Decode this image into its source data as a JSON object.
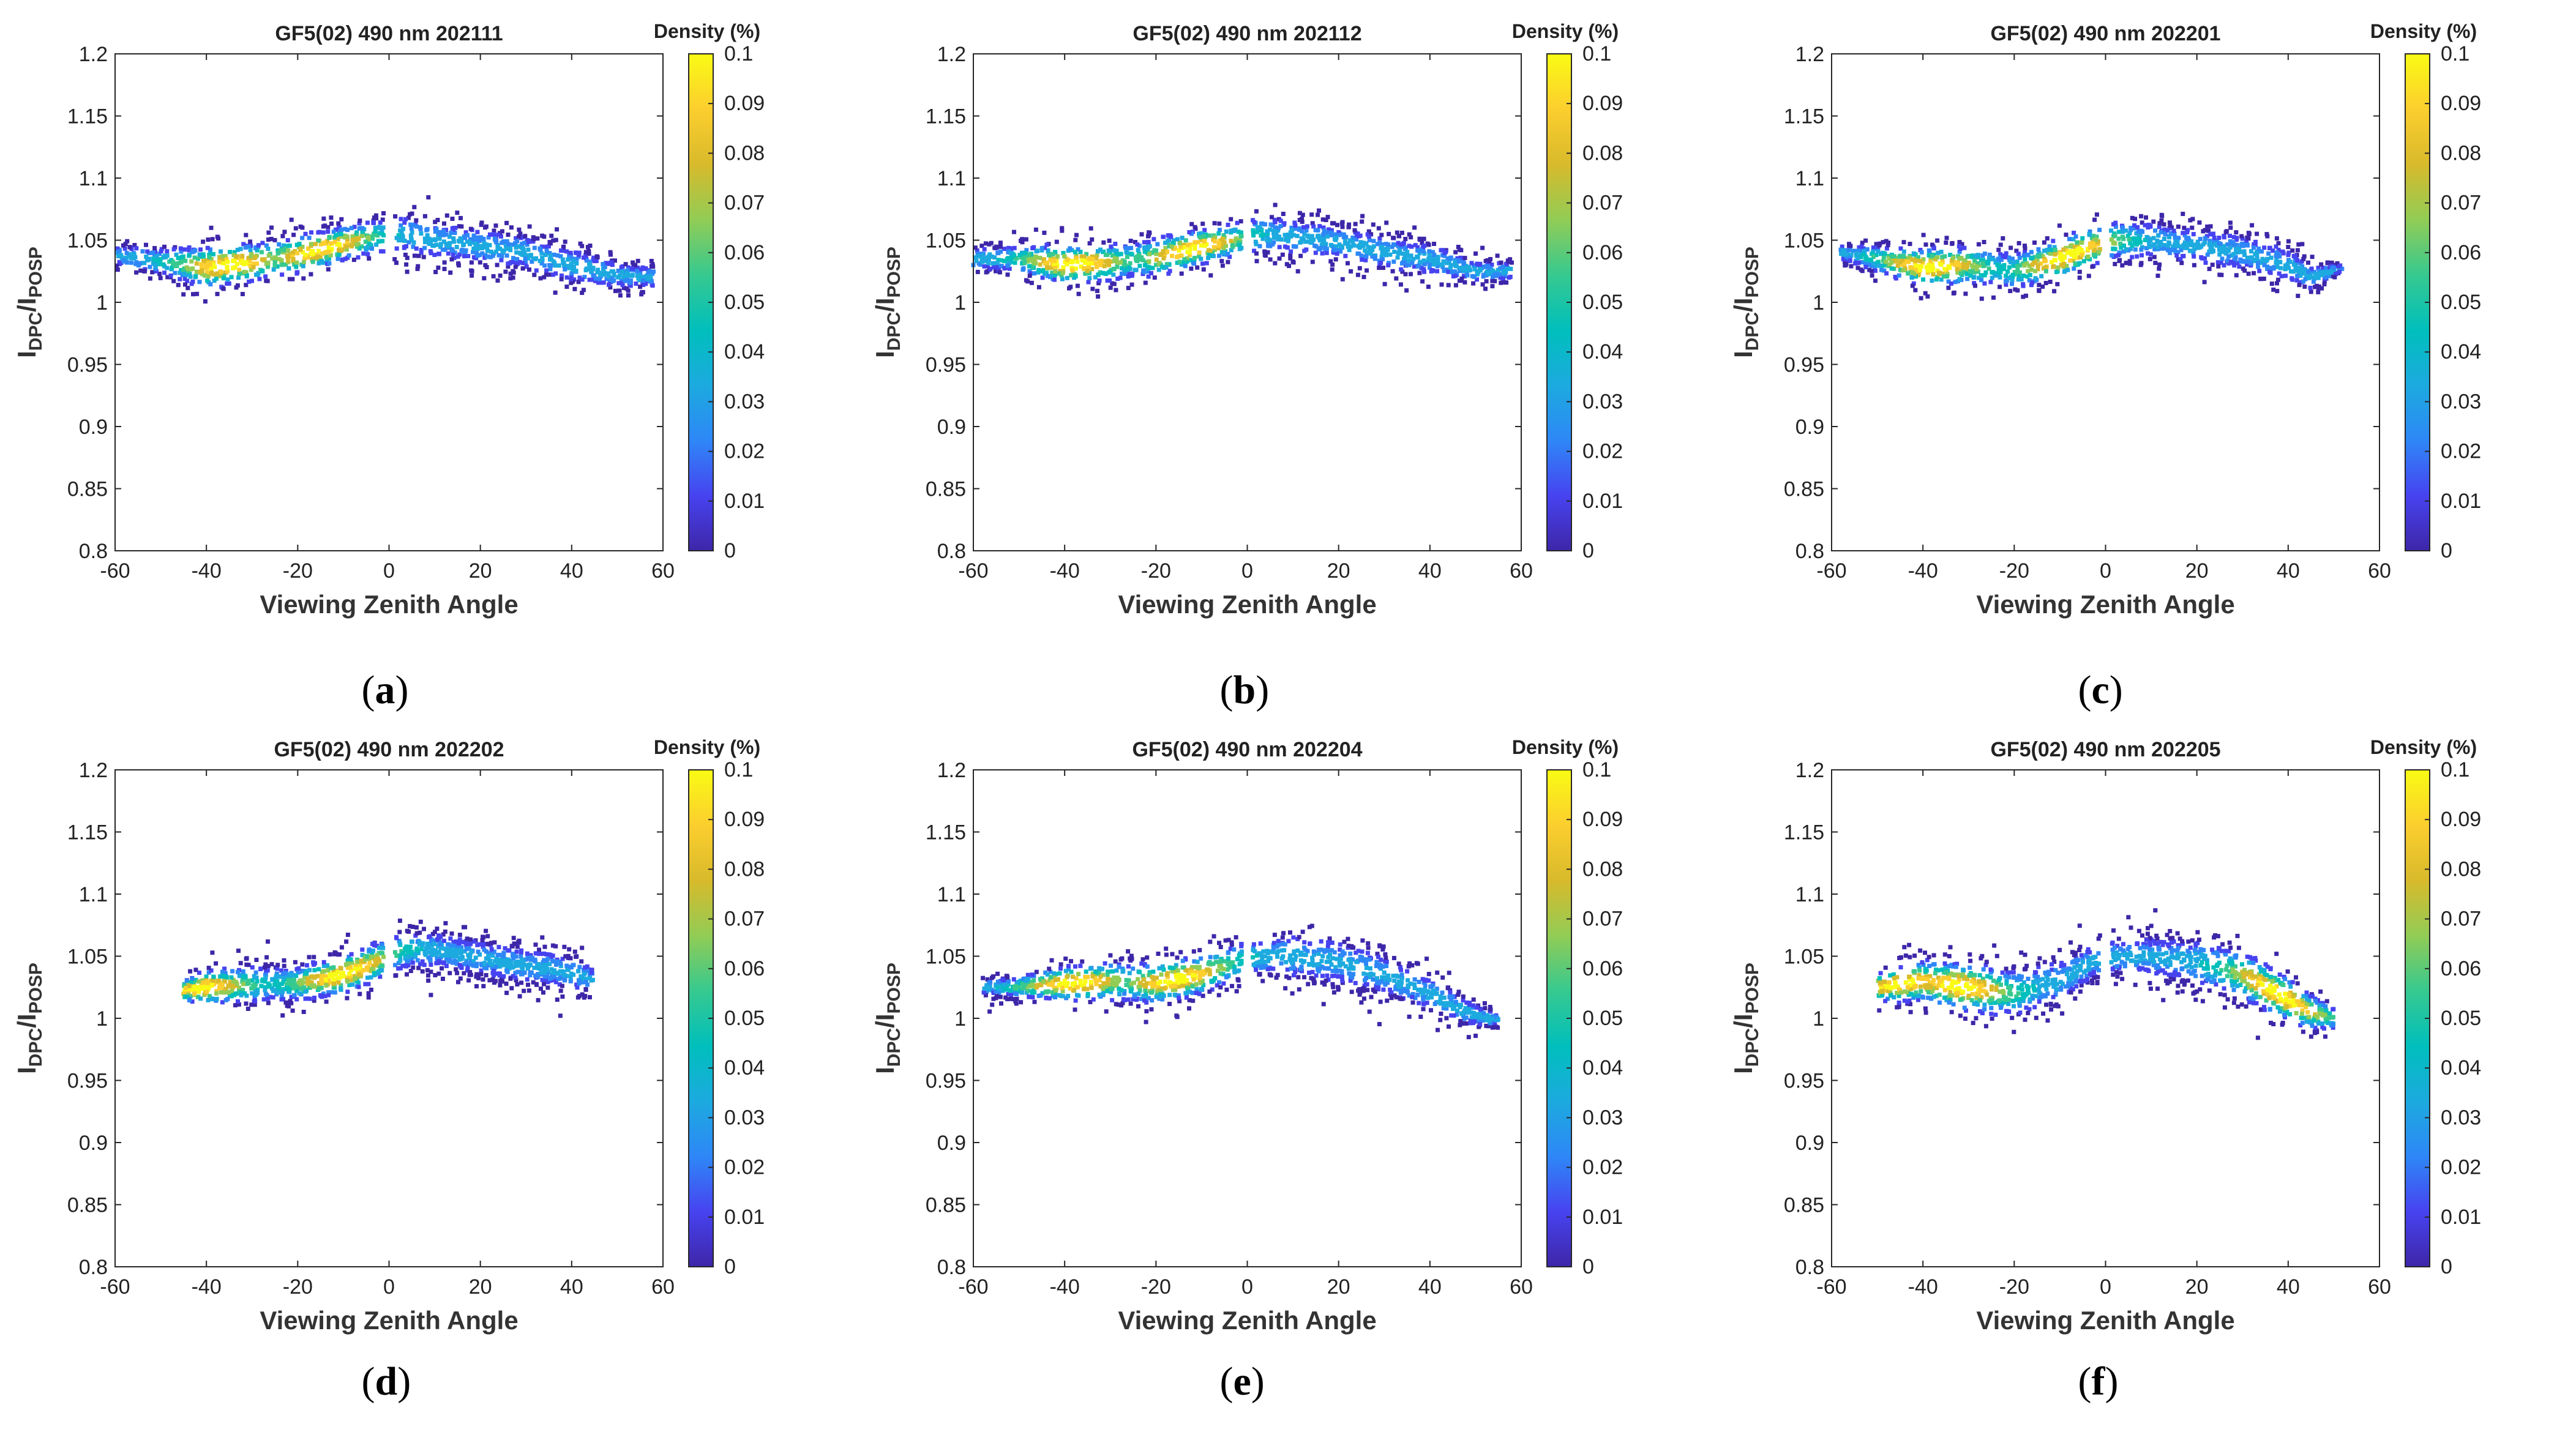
{
  "figure": {
    "x_axis_label": "Viewing Zenith Angle",
    "y_axis_label_main": "I",
    "y_axis_label_sub1": "DPC",
    "y_axis_label_sep": "/I",
    "y_axis_label_sub2": "POSP",
    "colorbar_title": "Density (%)",
    "colors": {
      "colormap": [
        "#3e26a8",
        "#4743f0",
        "#2e87f7",
        "#1caadf",
        "#00bfbc",
        "#37c98f",
        "#92cc55",
        "#d8ba2b",
        "#fcce2e",
        "#f9fb14"
      ],
      "axis": "#262626"
    }
  },
  "chart_data": [
    {
      "type": "scatter",
      "panel_label": "a",
      "title": "GF5(02) 490 nm 202111",
      "xlabel": "Viewing Zenith Angle",
      "ylabel": "IDPC/IPOSP",
      "xlim": [
        -60,
        60
      ],
      "ylim": [
        0.8,
        1.2
      ],
      "xticks": [
        "-60",
        "-40",
        "-20",
        "0",
        "20",
        "40",
        "60"
      ],
      "yticks": [
        "0.8",
        "0.85",
        "0.9",
        "0.95",
        "1",
        "1.05",
        "1.1",
        "1.15",
        "1.2"
      ],
      "colorbar": {
        "label": "Density (%)",
        "range": [
          0,
          0.1
        ],
        "ticks": [
          "0",
          "0.01",
          "0.02",
          "0.03",
          "0.04",
          "0.05",
          "0.06",
          "0.07",
          "0.08",
          "0.09",
          "0.1"
        ]
      },
      "trend": {
        "x": [
          -60,
          -50,
          -40,
          -30,
          -20,
          -10,
          -3,
          3,
          10,
          20,
          30,
          40,
          50,
          58
        ],
        "y": [
          1.038,
          1.033,
          1.028,
          1.032,
          1.038,
          1.047,
          1.053,
          1.055,
          1.05,
          1.045,
          1.04,
          1.03,
          1.022,
          1.02
        ],
        "spread": [
          0.012,
          0.015,
          0.022,
          0.02,
          0.02,
          0.018,
          0.018,
          0.02,
          0.022,
          0.02,
          0.02,
          0.02,
          0.015,
          0.012
        ],
        "peak_x": [
          -35,
          -15
        ]
      }
    },
    {
      "type": "scatter",
      "panel_label": "b",
      "title": "GF5(02) 490 nm 202112",
      "xlabel": "Viewing Zenith Angle",
      "ylabel": "IDPC/IPOSP",
      "xlim": [
        -60,
        60
      ],
      "ylim": [
        0.8,
        1.2
      ],
      "xticks": [
        "-60",
        "-40",
        "-20",
        "0",
        "20",
        "40",
        "60"
      ],
      "yticks": [
        "0.8",
        "0.85",
        "0.9",
        "0.95",
        "1",
        "1.05",
        "1.1",
        "1.15",
        "1.2"
      ],
      "colorbar": {
        "label": "Density (%)",
        "range": [
          0,
          0.1
        ],
        "ticks": [
          "0",
          "0.01",
          "0.02",
          "0.03",
          "0.04",
          "0.05",
          "0.06",
          "0.07",
          "0.08",
          "0.09",
          "0.1"
        ]
      },
      "trend": {
        "x": [
          -60,
          -50,
          -40,
          -30,
          -20,
          -10,
          -3,
          3,
          10,
          20,
          30,
          40,
          50,
          58
        ],
        "y": [
          1.035,
          1.035,
          1.03,
          1.032,
          1.036,
          1.045,
          1.05,
          1.055,
          1.053,
          1.048,
          1.04,
          1.035,
          1.025,
          1.025
        ],
        "spread": [
          0.012,
          0.015,
          0.02,
          0.02,
          0.02,
          0.018,
          0.018,
          0.02,
          0.02,
          0.02,
          0.02,
          0.018,
          0.012,
          0.01
        ],
        "peak_x": [
          -38,
          -12
        ]
      }
    },
    {
      "type": "scatter",
      "panel_label": "c",
      "title": "GF5(02) 490 nm 202201",
      "xlabel": "Viewing Zenith Angle",
      "ylabel": "IDPC/IPOSP",
      "xlim": [
        -60,
        60
      ],
      "ylim": [
        0.8,
        1.2
      ],
      "xticks": [
        "-60",
        "-40",
        "-20",
        "0",
        "20",
        "40",
        "60"
      ],
      "yticks": [
        "0.8",
        "0.85",
        "0.9",
        "0.95",
        "1",
        "1.05",
        "1.1",
        "1.15",
        "1.2"
      ],
      "colorbar": {
        "label": "Density (%)",
        "range": [
          0,
          0.1
        ],
        "ticks": [
          "0",
          "0.01",
          "0.02",
          "0.03",
          "0.04",
          "0.05",
          "0.06",
          "0.07",
          "0.08",
          "0.09",
          "0.1"
        ]
      },
      "trend": {
        "x": [
          -58,
          -50,
          -40,
          -30,
          -20,
          -10,
          -3,
          3,
          10,
          20,
          30,
          40,
          45,
          52
        ],
        "y": [
          1.04,
          1.035,
          1.028,
          1.03,
          1.025,
          1.035,
          1.045,
          1.05,
          1.05,
          1.045,
          1.04,
          1.03,
          1.02,
          1.028
        ],
        "spread": [
          0.008,
          0.015,
          0.02,
          0.02,
          0.02,
          0.02,
          0.02,
          0.02,
          0.02,
          0.02,
          0.02,
          0.02,
          0.015,
          0.003
        ],
        "peak_x": [
          -38,
          -8
        ]
      }
    },
    {
      "type": "scatter",
      "panel_label": "d",
      "title": "GF5(02) 490 nm 202202",
      "xlabel": "Viewing Zenith Angle",
      "ylabel": "IDPC/IPOSP",
      "xlim": [
        -60,
        60
      ],
      "ylim": [
        0.8,
        1.2
      ],
      "xticks": [
        "-60",
        "-40",
        "-20",
        "0",
        "20",
        "40",
        "60"
      ],
      "yticks": [
        "0.8",
        "0.85",
        "0.9",
        "0.95",
        "1",
        "1.05",
        "1.1",
        "1.15",
        "1.2"
      ],
      "colorbar": {
        "label": "Density (%)",
        "range": [
          0,
          0.1
        ],
        "ticks": [
          "0",
          "0.01",
          "0.02",
          "0.03",
          "0.04",
          "0.05",
          "0.06",
          "0.07",
          "0.08",
          "0.09",
          "0.1"
        ]
      },
      "trend": {
        "x": [
          -45,
          -40,
          -30,
          -20,
          -10,
          -3,
          3,
          10,
          18,
          25,
          35,
          42,
          45
        ],
        "y": [
          1.022,
          1.025,
          1.027,
          1.028,
          1.035,
          1.045,
          1.055,
          1.055,
          1.05,
          1.045,
          1.04,
          1.035,
          1.03
        ],
        "spread": [
          0.01,
          0.018,
          0.02,
          0.018,
          0.02,
          0.02,
          0.02,
          0.02,
          0.02,
          0.02,
          0.02,
          0.018,
          0.012
        ],
        "peak_x": [
          -42,
          -10
        ]
      }
    },
    {
      "type": "scatter",
      "panel_label": "e",
      "title": "GF5(02) 490 nm 202204",
      "xlabel": "Viewing Zenith Angle",
      "ylabel": "IDPC/IPOSP",
      "xlim": [
        -60,
        60
      ],
      "ylim": [
        0.8,
        1.2
      ],
      "xticks": [
        "-60",
        "-40",
        "-20",
        "0",
        "20",
        "40",
        "60"
      ],
      "yticks": [
        "0.8",
        "0.85",
        "0.9",
        "0.95",
        "1",
        "1.05",
        "1.1",
        "1.15",
        "1.2"
      ],
      "colorbar": {
        "label": "Density (%)",
        "range": [
          0,
          0.1
        ],
        "ticks": [
          "0",
          "0.01",
          "0.02",
          "0.03",
          "0.04",
          "0.05",
          "0.06",
          "0.07",
          "0.08",
          "0.09",
          "0.1"
        ]
      },
      "trend": {
        "x": [
          -58,
          -50,
          -40,
          -30,
          -20,
          -10,
          -3,
          3,
          10,
          20,
          30,
          40,
          48,
          55
        ],
        "y": [
          1.025,
          1.025,
          1.028,
          1.03,
          1.028,
          1.035,
          1.045,
          1.05,
          1.05,
          1.045,
          1.035,
          1.02,
          1.005,
          0.998
        ],
        "spread": [
          0.008,
          0.012,
          0.018,
          0.02,
          0.022,
          0.02,
          0.02,
          0.022,
          0.025,
          0.025,
          0.022,
          0.02,
          0.015,
          0.008
        ],
        "peak_x": [
          -38,
          -15
        ]
      }
    },
    {
      "type": "scatter",
      "panel_label": "f",
      "title": "GF5(02) 490 nm 202205",
      "xlabel": "Viewing Zenith Angle",
      "ylabel": "IDPC/IPOSP",
      "xlim": [
        -60,
        60
      ],
      "ylim": [
        0.8,
        1.2
      ],
      "xticks": [
        "-60",
        "-40",
        "-20",
        "0",
        "20",
        "40",
        "60"
      ],
      "yticks": [
        "0.8",
        "0.85",
        "0.9",
        "0.95",
        "1",
        "1.05",
        "1.1",
        "1.15",
        "1.2"
      ],
      "colorbar": {
        "label": "Density (%)",
        "range": [
          0,
          0.1
        ],
        "ticks": [
          "0",
          "0.01",
          "0.02",
          "0.03",
          "0.04",
          "0.05",
          "0.06",
          "0.07",
          "0.08",
          "0.09",
          "0.1"
        ]
      },
      "trend": {
        "x": [
          -50,
          -40,
          -30,
          -20,
          -10,
          -3,
          3,
          10,
          20,
          30,
          40,
          45,
          50
        ],
        "y": [
          1.025,
          1.03,
          1.025,
          1.02,
          1.03,
          1.045,
          1.05,
          1.05,
          1.045,
          1.035,
          1.015,
          1.005,
          1.0
        ],
        "spread": [
          0.015,
          0.022,
          0.025,
          0.025,
          0.025,
          0.02,
          0.02,
          0.022,
          0.025,
          0.025,
          0.022,
          0.018,
          0.012
        ],
        "peak_x": [
          -45,
          -32,
          38
        ]
      }
    }
  ]
}
